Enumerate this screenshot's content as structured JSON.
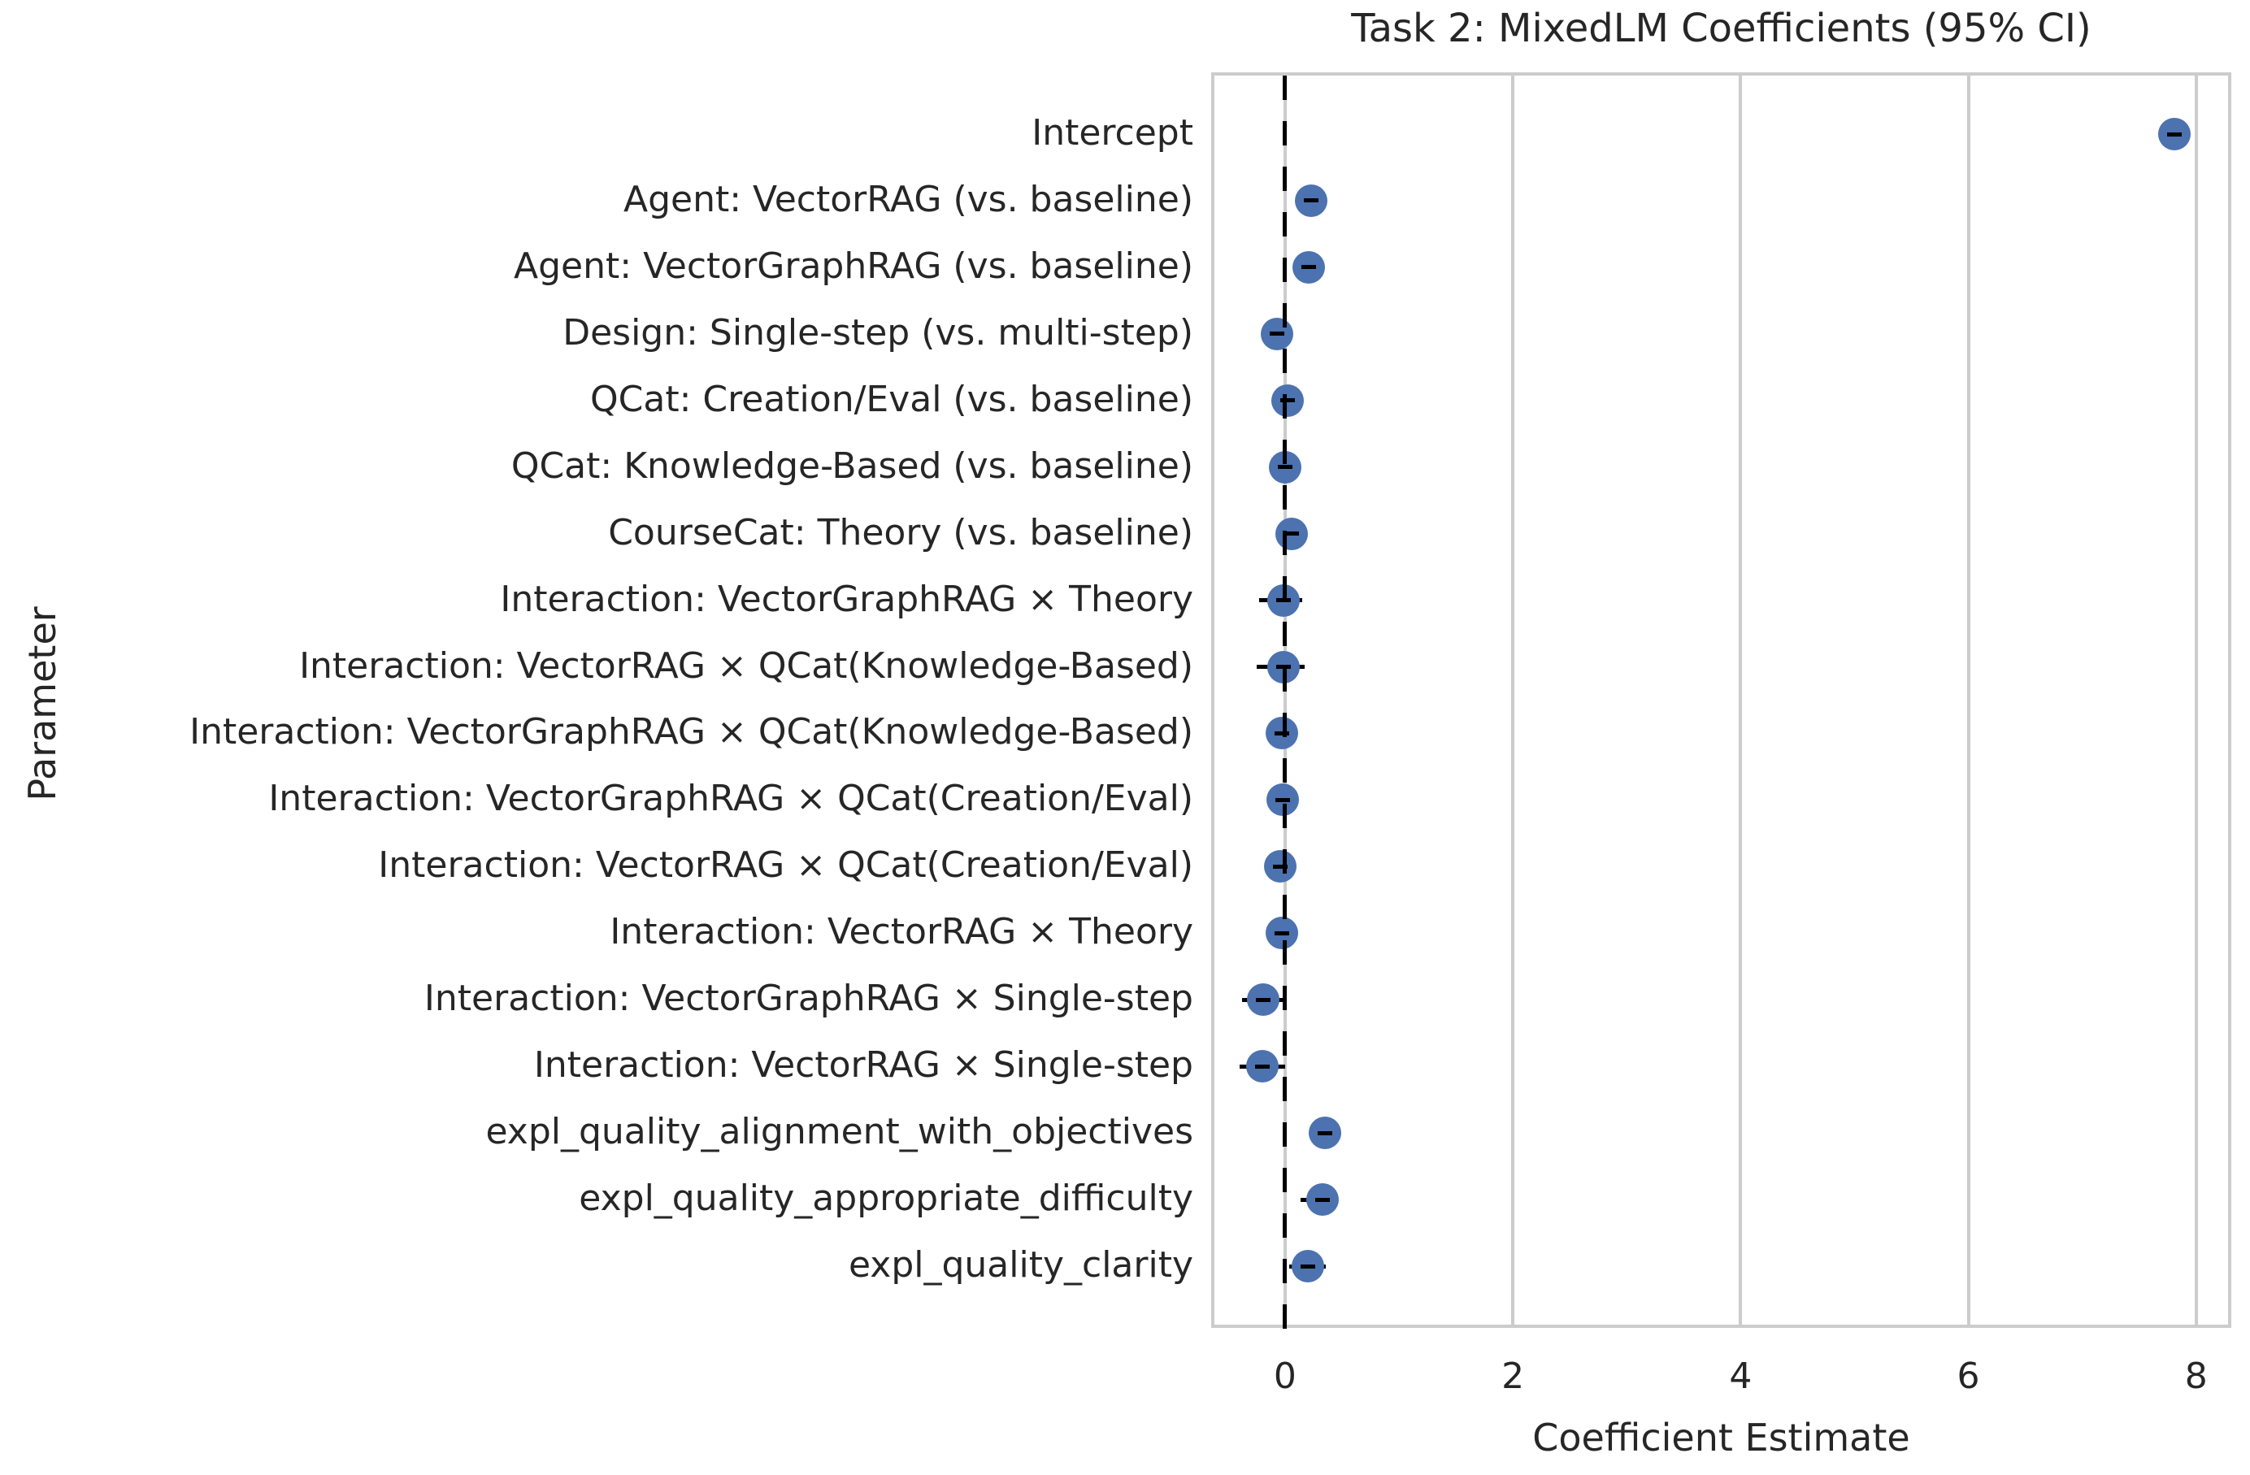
{
  "chart_data": {
    "type": "scatter",
    "subtype": "horizontal-coefficient-dot-plot-with-ci",
    "title": "Task 2: MixedLM Coefficients (95% CI)",
    "xlabel": "Coefficient Estimate",
    "ylabel": "Parameter",
    "xlim": [
      -0.62,
      8.28
    ],
    "xticks": [
      0,
      2,
      4,
      6,
      8
    ],
    "grid": "vertical-light-gray-gridlines",
    "legend": "none",
    "zero_reference_line": {
      "x": 0,
      "style": "dashed",
      "color": "#000000"
    },
    "marker_color": "#4C72B0",
    "ci_color": "#000000",
    "points": [
      {
        "label": "Intercept",
        "value": 7.81,
        "ci_lo": 7.72,
        "ci_hi": 7.9
      },
      {
        "label": "Agent: VectorRAG (vs. baseline)",
        "value": 0.23,
        "ci_lo": 0.13,
        "ci_hi": 0.33
      },
      {
        "label": "Agent: VectorGraphRAG (vs. baseline)",
        "value": 0.21,
        "ci_lo": 0.11,
        "ci_hi": 0.31
      },
      {
        "label": "Design: Single-step (vs. multi-step)",
        "value": -0.07,
        "ci_lo": -0.16,
        "ci_hi": 0.02
      },
      {
        "label": "QCat: Creation/Eval (vs. baseline)",
        "value": 0.02,
        "ci_lo": -0.08,
        "ci_hi": 0.12
      },
      {
        "label": "QCat: Knowledge-Based (vs. baseline)",
        "value": 0.0,
        "ci_lo": -0.1,
        "ci_hi": 0.1
      },
      {
        "label": "CourseCat: Theory (vs. baseline)",
        "value": 0.06,
        "ci_lo": -0.06,
        "ci_hi": 0.18
      },
      {
        "label": "Interaction: VectorGraphRAG × Theory",
        "value": -0.01,
        "ci_lo": -0.23,
        "ci_hi": 0.15
      },
      {
        "label": "Interaction: VectorRAG × QCat(Knowledge-Based)",
        "value": -0.01,
        "ci_lo": -0.25,
        "ci_hi": 0.17
      },
      {
        "label": "Interaction: VectorGraphRAG × QCat(Knowledge-Based)",
        "value": -0.03,
        "ci_lo": -0.16,
        "ci_hi": 0.1
      },
      {
        "label": "Interaction: VectorGraphRAG × QCat(Creation/Eval)",
        "value": -0.02,
        "ci_lo": -0.15,
        "ci_hi": 0.11
      },
      {
        "label": "Interaction: VectorRAG × QCat(Creation/Eval)",
        "value": -0.04,
        "ci_lo": -0.16,
        "ci_hi": 0.08
      },
      {
        "label": "Interaction: VectorRAG × Theory",
        "value": -0.03,
        "ci_lo": -0.16,
        "ci_hi": 0.1
      },
      {
        "label": "Interaction: VectorGraphRAG × Single-step",
        "value": -0.19,
        "ci_lo": -0.38,
        "ci_hi": 0.0
      },
      {
        "label": "Interaction: VectorRAG × Single-step",
        "value": -0.2,
        "ci_lo": -0.4,
        "ci_hi": 0.0
      },
      {
        "label": "expl_quality_alignment_with_objectives",
        "value": 0.35,
        "ci_lo": 0.27,
        "ci_hi": 0.43
      },
      {
        "label": "expl_quality_appropriate_difficulty",
        "value": 0.33,
        "ci_lo": 0.14,
        "ci_hi": 0.45
      },
      {
        "label": "expl_quality_clarity",
        "value": 0.2,
        "ci_lo": 0.04,
        "ci_hi": 0.36
      }
    ]
  },
  "colors": {
    "marker_blue": "#4C72B0",
    "grid_gray": "#cccccc",
    "text_dark": "#262626",
    "reference_black": "#000000",
    "background": "#ffffff"
  }
}
